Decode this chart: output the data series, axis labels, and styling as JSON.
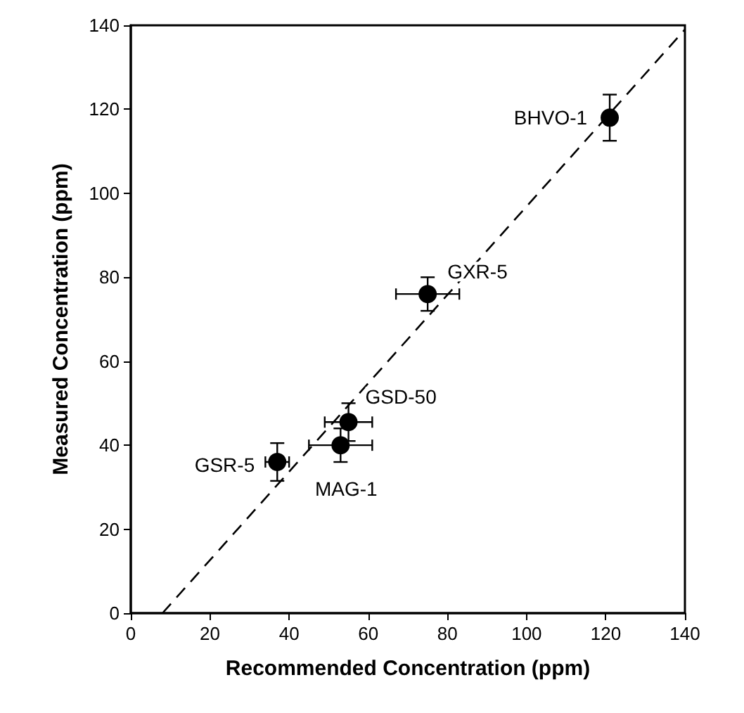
{
  "chart_data": {
    "type": "scatter",
    "xlabel": "Recommended Concentration (ppm)",
    "ylabel": "Measured Concentration (ppm)",
    "xlim": [
      0,
      140
    ],
    "ylim": [
      0,
      140
    ],
    "xticks": [
      0,
      20,
      40,
      60,
      80,
      100,
      120,
      140
    ],
    "yticks": [
      0,
      20,
      40,
      60,
      80,
      100,
      120,
      140
    ],
    "grid": false,
    "marker": "circle",
    "series": [
      {
        "type": "scatter",
        "color": "#000000",
        "x": [
          121,
          75,
          55,
          53,
          37
        ],
        "values": [
          118,
          76,
          45.5,
          40,
          36
        ],
        "errors": [
          5.5,
          4,
          4.5,
          4,
          4.5
        ],
        "xerrors": [
          null,
          8,
          6,
          8,
          3
        ]
      },
      {
        "type": "line",
        "color": "#000000",
        "line_style": "dashed",
        "marker": "none",
        "x": [
          8,
          140
        ],
        "values": [
          0,
          139
        ]
      }
    ],
    "annotations": [
      {
        "text": "BHVO-1",
        "x": 121,
        "y": 118
      },
      {
        "text": "GXR-5",
        "x": 75,
        "y": 76
      },
      {
        "text": "GSD-50",
        "x": 55,
        "y": 45.5
      },
      {
        "text": "MAG-1",
        "x": 53,
        "y": 40
      },
      {
        "text": "GSR-5",
        "x": 37,
        "y": 36
      }
    ]
  }
}
